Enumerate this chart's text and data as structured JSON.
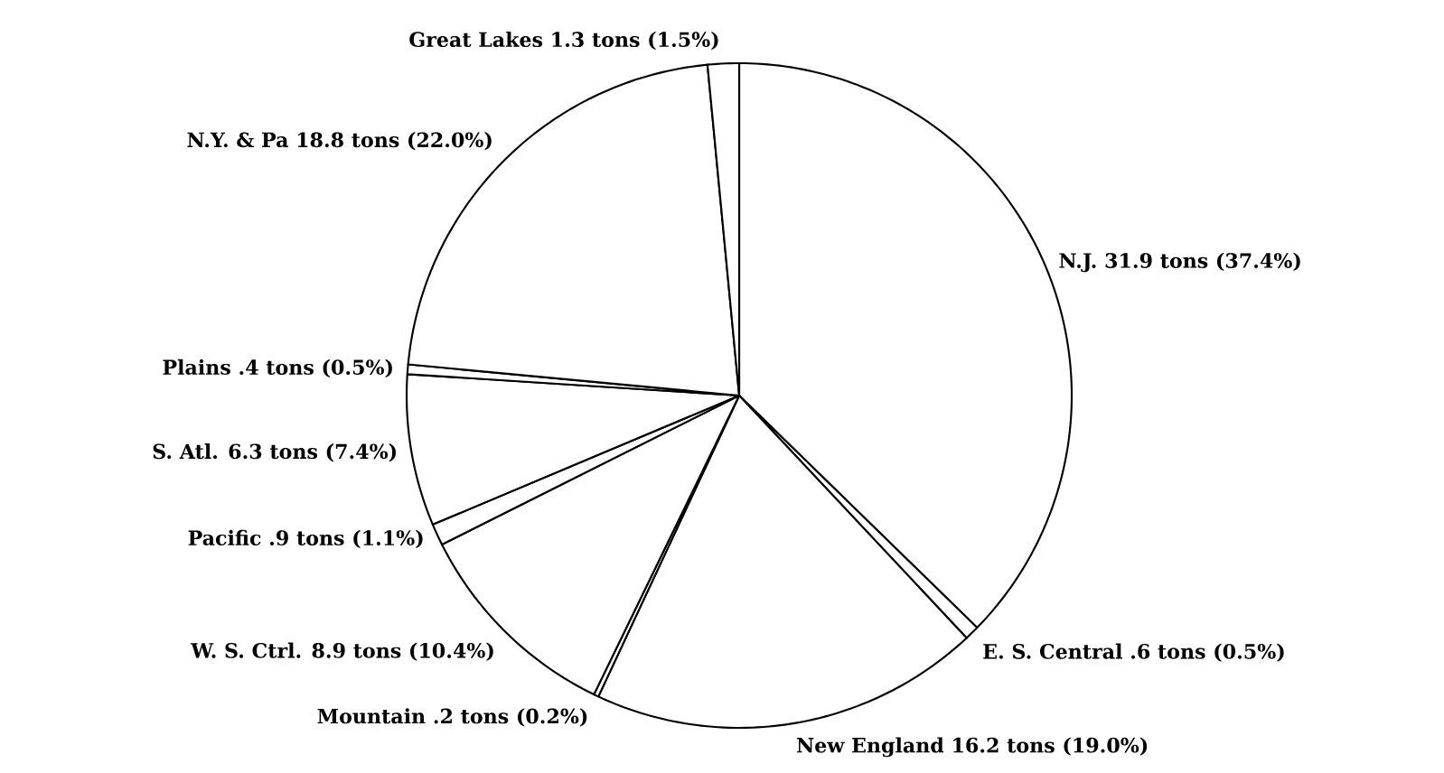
{
  "chart_data": {
    "type": "pie",
    "categories": [
      "N.J.",
      "E. S. Central",
      "New England",
      "Mountain",
      "W. S. Ctrl.",
      "Pacific",
      "S. Atl.",
      "Plains",
      "N.Y. & Pa",
      "Great Lakes"
    ],
    "values": [
      31.9,
      0.6,
      16.2,
      0.2,
      8.9,
      0.9,
      6.3,
      0.4,
      18.8,
      1.3
    ],
    "value_labels": [
      "31.9 tons (37.4%)",
      ".6 tons (0.5%)",
      "16.2 tons (19.0%)",
      ".2 tons (0.2%)",
      "8.9 tons (10.4%)",
      ".9 tons (1.1%)",
      "6.3 tons (7.4%)",
      ".4 tons (0.5%)",
      "18.8 tons (22.0%)",
      "1.3 tons (1.5%)"
    ],
    "colors": [
      "#ffffff",
      "#ffffff",
      "#ffffff",
      "#ffffff",
      "#ffffff",
      "#ffffff",
      "#ffffff",
      "#ffffff",
      "#ffffff",
      "#ffffff"
    ]
  }
}
